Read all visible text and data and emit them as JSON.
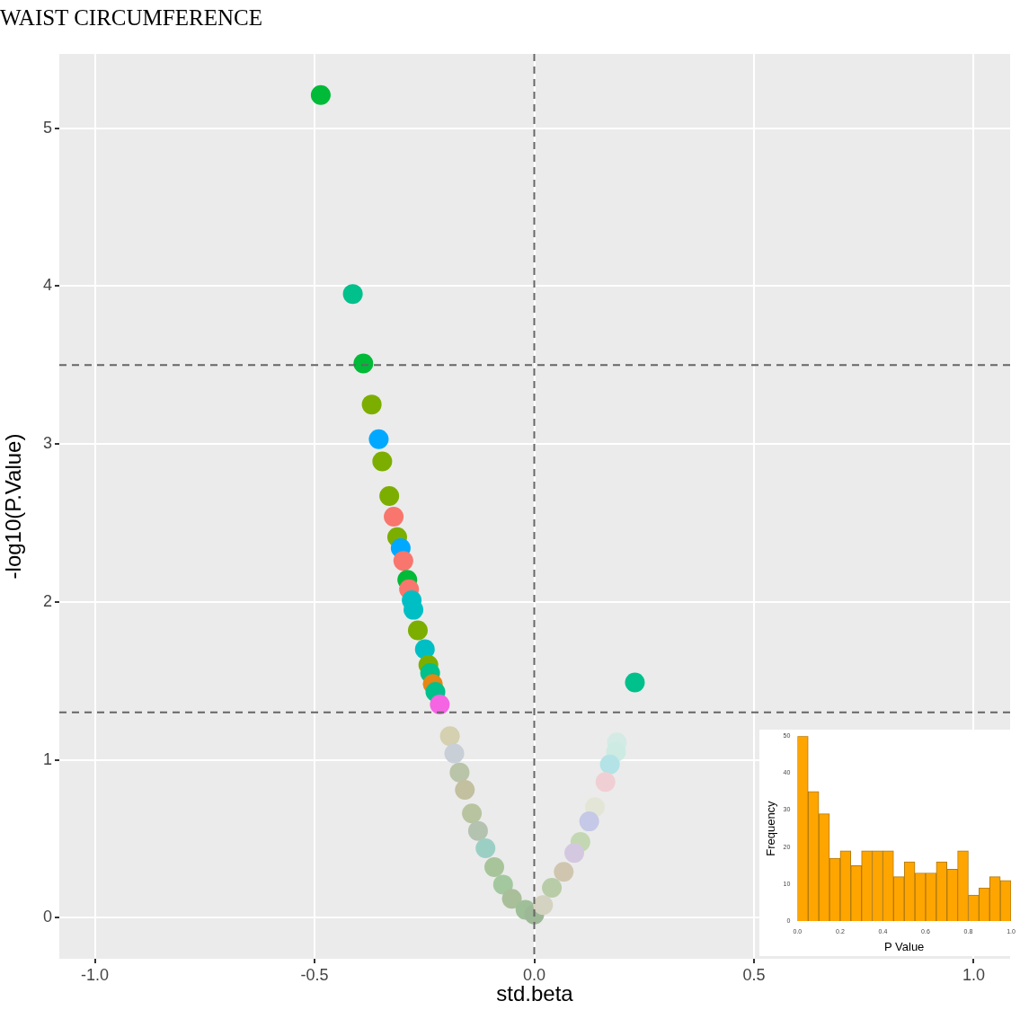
{
  "chart_data": [
    {
      "type": "scatter",
      "title": "WAIST CIRCUMFERENCE",
      "xlabel": "std.beta",
      "ylabel": "-log10(P.Value)",
      "x": [
        -0.486,
        -0.413,
        -0.389,
        -0.37,
        -0.354,
        -0.346,
        -0.33,
        -0.32,
        -0.312,
        -0.304,
        -0.298,
        -0.289,
        -0.285,
        -0.279,
        -0.275,
        -0.265,
        -0.249,
        -0.241,
        -0.237,
        -0.231,
        -0.225,
        -0.215,
        0.229,
        -0.192,
        -0.182,
        -0.17,
        -0.158,
        -0.142,
        -0.128,
        -0.111,
        -0.091,
        -0.071,
        -0.051,
        -0.02,
        0.0,
        0.188,
        0.186,
        0.172,
        0.162,
        0.138,
        0.125,
        0.105,
        0.091,
        0.067,
        0.04,
        0.02
      ],
      "values": [
        5.21,
        3.95,
        3.51,
        3.25,
        3.03,
        2.89,
        2.67,
        2.54,
        2.41,
        2.34,
        2.26,
        2.14,
        2.08,
        2.01,
        1.95,
        1.82,
        1.7,
        1.6,
        1.55,
        1.48,
        1.43,
        1.35,
        1.49,
        1.15,
        1.04,
        0.92,
        0.81,
        0.66,
        0.55,
        0.44,
        0.32,
        0.21,
        0.12,
        0.05,
        0.02,
        1.11,
        1.05,
        0.97,
        0.86,
        0.7,
        0.61,
        0.48,
        0.41,
        0.29,
        0.19,
        0.08
      ],
      "colors": [
        "#00ba38",
        "#00c08b",
        "#00ba38",
        "#7cae00",
        "#00a9ff",
        "#7cae00",
        "#7cae00",
        "#f8766d",
        "#7cae00",
        "#00a9ff",
        "#f8766d",
        "#00ba38",
        "#f8766d",
        "#00bfc4",
        "#00bfc4",
        "#7cae00",
        "#00bfc4",
        "#7cae00",
        "#00c08b",
        "#e68613",
        "#00c08b",
        "#f564e3",
        "#00c08b",
        "#d4d0b0",
        "#c9cfd6",
        "#b9c4a8",
        "#c3c0a0",
        "#b8c4a0",
        "#b4c2b0",
        "#9ccfc4",
        "#a8c49a",
        "#a3c8a0",
        "#a9bf9a",
        "#9fbf98",
        "#9cb896",
        "#d3ebe4",
        "#cdebe2",
        "#b3e3e6",
        "#f0cfd4",
        "#e3e6d6",
        "#c5c8e6",
        "#c3d8b2",
        "#d4c8e0",
        "#d0c6b0",
        "#b8cca8",
        "#d4d2c0"
      ],
      "xlim": [
        -1.081,
        1.083
      ],
      "ylim": [
        -0.26,
        5.47
      ],
      "xticks": [
        {
          "value": -1,
          "label": "-1.0"
        },
        {
          "value": -0.5,
          "label": "-0.5"
        },
        {
          "value": 0,
          "label": "0.0"
        },
        {
          "value": 0.5,
          "label": "0.5"
        },
        {
          "value": 1,
          "label": "1.0"
        }
      ],
      "yticks": [
        0,
        1,
        2,
        3,
        4,
        5
      ],
      "grid": true,
      "legend": false,
      "marker": "circle",
      "ref_lines": [
        {
          "axis": "x",
          "value": 0,
          "color": "#666666",
          "line_style": "dashed"
        },
        {
          "axis": "y",
          "value": 3.5,
          "color": "#666666",
          "line_style": "dashed"
        },
        {
          "axis": "y",
          "value": 1.3,
          "color": "#666666",
          "line_style": "dashed"
        }
      ]
    },
    {
      "type": "histogram",
      "xlabel": "P Value",
      "ylabel": "Frequency",
      "color": "#ffa500",
      "bins": [
        0,
        0.05,
        0.1,
        0.15,
        0.2,
        0.25,
        0.3,
        0.35,
        0.4,
        0.45,
        0.5,
        0.55,
        0.6,
        0.65,
        0.7,
        0.75,
        0.8,
        0.85,
        0.9,
        0.95,
        1.0
      ],
      "values": [
        50,
        35,
        29,
        17,
        19,
        15,
        19,
        19,
        19,
        12,
        16,
        13,
        13,
        16,
        14,
        19,
        7,
        9,
        12,
        11
      ],
      "xlim": [
        0,
        1
      ],
      "ylim": [
        0,
        50
      ],
      "xticks": [
        {
          "value": 0,
          "label": "0.0"
        },
        {
          "value": 0.2,
          "label": "0.2"
        },
        {
          "value": 0.4,
          "label": "0.4"
        },
        {
          "value": 0.6,
          "label": "0.6"
        },
        {
          "value": 0.8,
          "label": "0.8"
        },
        {
          "value": 1,
          "label": "1.0"
        }
      ],
      "yticks": [
        0,
        10,
        20,
        30,
        40,
        50
      ],
      "grid": false,
      "legend": false
    }
  ]
}
